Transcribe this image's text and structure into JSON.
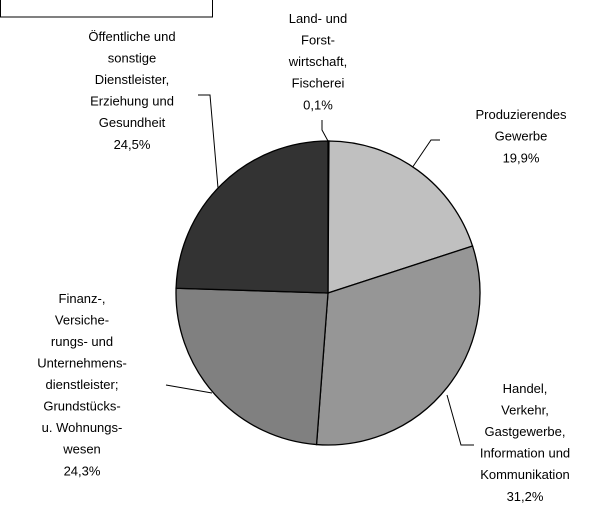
{
  "chart_data": {
    "type": "pie",
    "categories": [
      "Land- und\nForst-\nwirtschaft,\nFischerei",
      "Produzierendes\nGewerbe",
      "Handel,\nVerkehr,\nGastgewerbe,\nInformation und\nKommunikation",
      "Finanz-,\nVersiche-\nrungs- und\nUnternehmens-\ndienstleister;\nGrundstücks-\nu. Wohnungs-\nwesen",
      "Öffentliche und\nsonstige\nDienstleister,\nErziehung und\nGesundheit"
    ],
    "values": [
      0.1,
      19.9,
      31.2,
      24.3,
      24.5
    ],
    "value_labels": [
      "0,1%",
      "19,9%",
      "31,2%",
      "24,3%",
      "24,5%"
    ],
    "colors": [
      "#ffffff",
      "#c0c0c0",
      "#969696",
      "#808080",
      "#333333"
    ]
  }
}
